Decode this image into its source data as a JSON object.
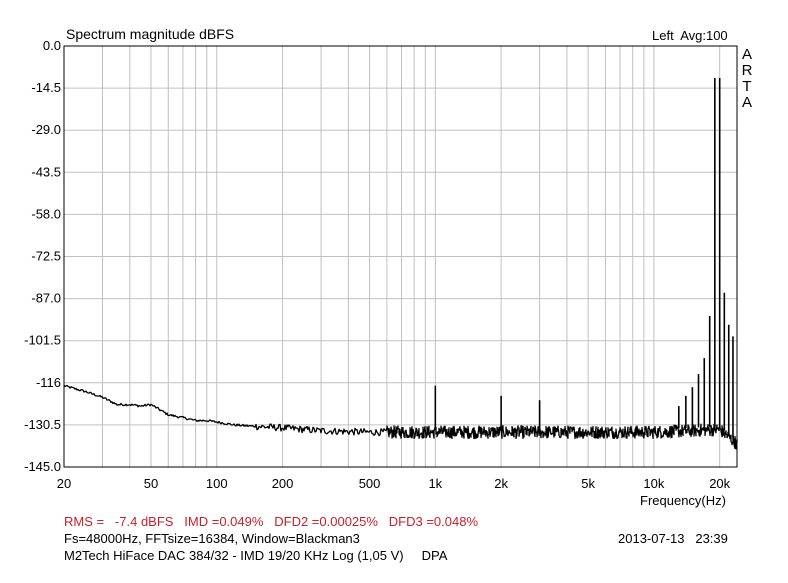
{
  "header": {
    "title": "Spectrum magnitude dBFS",
    "channel_avg": "Left  Avg:100",
    "brand_letters": [
      "A",
      "R",
      "T",
      "A"
    ]
  },
  "chart_data": {
    "type": "line",
    "title": "Spectrum magnitude dBFS",
    "xlabel": "Frequency(Hz)",
    "ylabel": "",
    "xscale": "log",
    "xlim": [
      20,
      24000
    ],
    "ylim": [
      -145,
      0
    ],
    "grid": true,
    "x_ticks": [
      20,
      50,
      100,
      200,
      500,
      1000,
      2000,
      5000,
      10000,
      20000
    ],
    "x_tick_labels": [
      "20",
      "50",
      "100",
      "200",
      "500",
      "1k",
      "2k",
      "5k",
      "10k",
      "20k"
    ],
    "y_ticks": [
      0,
      -14.5,
      -29,
      -43.5,
      -58,
      -72.5,
      -87,
      -101.5,
      -116,
      -130.5,
      -145
    ],
    "y_tick_labels": [
      "0.0",
      "-14.5",
      "-29.0",
      "-43.5",
      "-58.0",
      "-72.5",
      "-87.0",
      "-101.5",
      "-116",
      "-130.5",
      "-145.0"
    ],
    "noise_floor": {
      "x": [
        20,
        25,
        30,
        35,
        40,
        45,
        50,
        60,
        70,
        80,
        90,
        100,
        120,
        150,
        200,
        300,
        500,
        1000,
        2000,
        5000,
        10000,
        15000,
        20000,
        24000
      ],
      "y": [
        -117,
        -119,
        -121,
        -123.5,
        -123.5,
        -124,
        -123.5,
        -127,
        -128,
        -129,
        -129,
        -129.5,
        -130.5,
        -131,
        -131.5,
        -132.5,
        -133,
        -133,
        -133,
        -133,
        -133,
        -132.5,
        -132,
        -137
      ]
    },
    "spikes": [
      {
        "x": 1000,
        "y": -117
      },
      {
        "x": 2000,
        "y": -120.5
      },
      {
        "x": 3000,
        "y": -122
      },
      {
        "x": 13000,
        "y": -124
      },
      {
        "x": 14000,
        "y": -120.5
      },
      {
        "x": 15000,
        "y": -117.5
      },
      {
        "x": 16000,
        "y": -113
      },
      {
        "x": 17000,
        "y": -107.5
      },
      {
        "x": 18000,
        "y": -93
      },
      {
        "x": 19000,
        "y": -11
      },
      {
        "x": 20000,
        "y": -11
      },
      {
        "x": 21000,
        "y": -85
      },
      {
        "x": 22000,
        "y": -96
      },
      {
        "x": 23000,
        "y": -100
      }
    ],
    "series": [
      {
        "values": "noise_floor+spikes"
      }
    ],
    "line_color": "#000000",
    "grid_color": "#c0c0c0"
  },
  "footer": {
    "stats": "RMS =   -7.4 dBFS   IMD =0.049%   DFD2 =0.00025%   DFD3 =0.048%",
    "settings": "Fs=48000Hz, FFTsize=16384, Window=Blackman3",
    "timestamp": "2013-07-13   23:39",
    "description": "M2Tech HiFace DAC 384/32 - IMD 19/20 KHz Log (1,05 V)     DPA",
    "stats_color": "#c8202a"
  }
}
